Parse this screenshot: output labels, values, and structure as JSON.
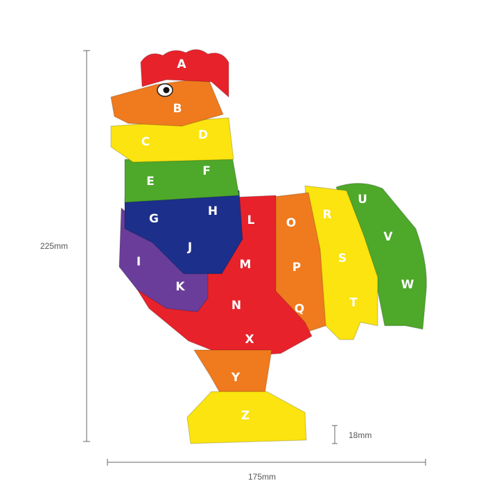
{
  "product": {
    "name": "rooster alphabet puzzle",
    "colors": {
      "red": "#e8222b",
      "orange": "#f07a1e",
      "yellow": "#fbe40f",
      "green": "#4ea82a",
      "navy": "#1c2f8a",
      "purple": "#6a3d9a"
    },
    "letters": [
      "A",
      "B",
      "C",
      "D",
      "E",
      "F",
      "G",
      "H",
      "I",
      "J",
      "K",
      "L",
      "M",
      "N",
      "O",
      "P",
      "Q",
      "R",
      "S",
      "T",
      "U",
      "V",
      "W",
      "X",
      "Y",
      "Z"
    ]
  },
  "dimensions": {
    "height": "225mm",
    "width": "175mm",
    "thickness": "18mm"
  }
}
